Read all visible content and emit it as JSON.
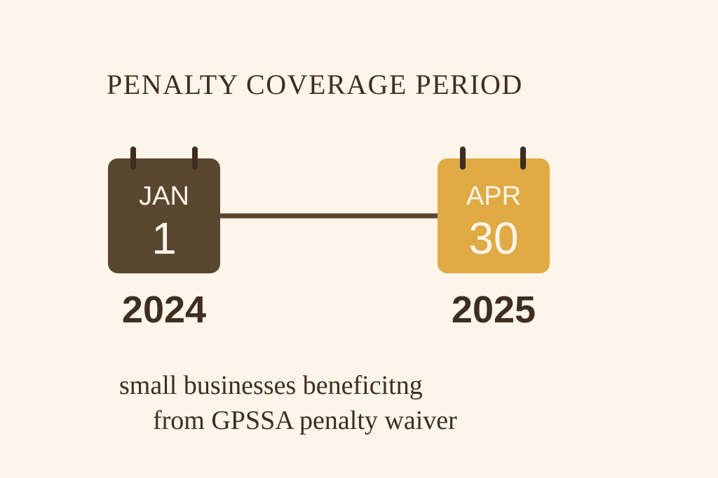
{
  "title": "PENALTY COVERAGE PERIOD",
  "start": {
    "month": "JAN",
    "day": "1",
    "year": "2024"
  },
  "end": {
    "month": "APR",
    "day": "30",
    "year": "2025"
  },
  "caption": {
    "lines": [
      "small businesses beneficitng",
      "from GPSSA penalty waiver"
    ]
  }
}
